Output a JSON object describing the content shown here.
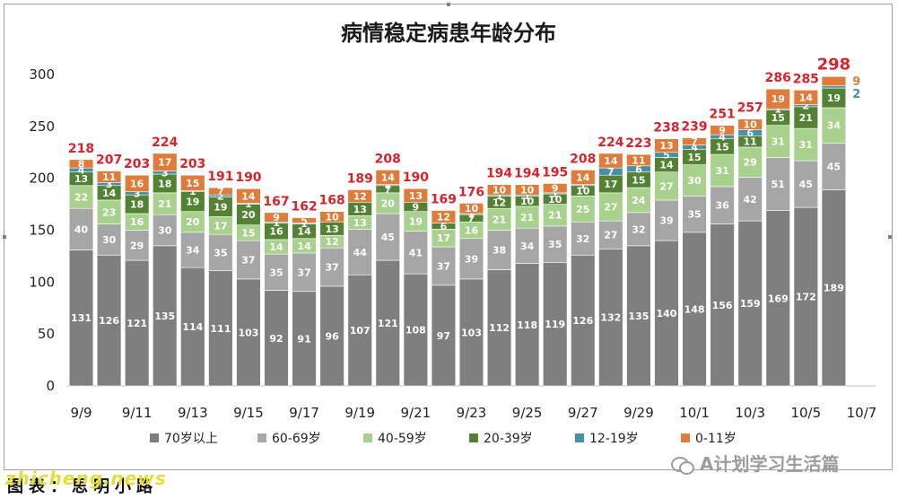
{
  "chart_data": {
    "type": "bar",
    "stacked": true,
    "title": "病情稳定病患年龄分布",
    "categories": [
      "9/9",
      "9/10",
      "9/11",
      "9/12",
      "9/13",
      "9/14",
      "9/15",
      "9/16",
      "9/17",
      "9/18",
      "9/19",
      "9/20",
      "9/21",
      "9/22",
      "9/23",
      "9/24",
      "9/25",
      "9/26",
      "9/27",
      "9/28",
      "9/29",
      "9/30",
      "10/1",
      "10/2",
      "10/3",
      "10/4",
      "10/5",
      "10/6",
      "10/7"
    ],
    "x_tick_labels": [
      "9/9",
      "9/11",
      "9/13",
      "9/15",
      "9/17",
      "9/19",
      "9/21",
      "9/23",
      "9/25",
      "9/27",
      "9/29",
      "10/1",
      "10/3",
      "10/5",
      "10/7"
    ],
    "ylim": [
      0,
      300
    ],
    "yticks": [
      0,
      50,
      100,
      150,
      200,
      250,
      300
    ],
    "grid": false,
    "legend_position": "bottom",
    "series": [
      {
        "name": "70岁以上",
        "color": "#7f7f7f",
        "values": [
          131,
          126,
          121,
          135,
          114,
          111,
          103,
          92,
          91,
          96,
          107,
          121,
          108,
          97,
          103,
          112,
          118,
          119,
          126,
          132,
          135,
          140,
          148,
          156,
          159,
          169,
          172,
          189,
          0
        ]
      },
      {
        "name": "60-69岁",
        "color": "#a6a6a6",
        "values": [
          40,
          30,
          29,
          30,
          34,
          35,
          37,
          35,
          37,
          37,
          44,
          45,
          41,
          37,
          39,
          38,
          34,
          35,
          32,
          27,
          32,
          39,
          35,
          36,
          42,
          51,
          45,
          45,
          0
        ]
      },
      {
        "name": "40-59岁",
        "color": "#a9d18e",
        "values": [
          22,
          23,
          16,
          21,
          20,
          17,
          15,
          14,
          14,
          12,
          13,
          20,
          19,
          17,
          16,
          21,
          21,
          21,
          25,
          27,
          24,
          27,
          30,
          31,
          29,
          31,
          31,
          34,
          0
        ]
      },
      {
        "name": "20-39岁",
        "color": "#548235",
        "values": [
          13,
          14,
          18,
          18,
          19,
          19,
          20,
          16,
          14,
          13,
          13,
          7,
          9,
          6,
          7,
          12,
          10,
          10,
          10,
          17,
          15,
          14,
          15,
          15,
          11,
          15,
          21,
          19,
          0
        ]
      },
      {
        "name": "12-19岁",
        "color": "#4a90a4",
        "values": [
          4,
          3,
          3,
          3,
          1,
          2,
          1,
          1,
          1,
          0,
          0,
          1,
          0,
          0,
          1,
          1,
          1,
          1,
          1,
          7,
          6,
          5,
          4,
          4,
          6,
          1,
          2,
          2,
          0
        ]
      },
      {
        "name": "0-11岁",
        "color": "#e07b39",
        "values": [
          8,
          11,
          16,
          17,
          15,
          7,
          14,
          9,
          5,
          10,
          12,
          14,
          13,
          12,
          10,
          10,
          10,
          9,
          14,
          14,
          11,
          13,
          7,
          9,
          10,
          19,
          14,
          9,
          0
        ]
      }
    ],
    "totals": [
      218,
      207,
      203,
      224,
      203,
      191,
      190,
      167,
      162,
      168,
      189,
      208,
      190,
      169,
      176,
      194,
      194,
      195,
      208,
      224,
      223,
      238,
      239,
      251,
      257,
      286,
      285,
      298,
      null
    ],
    "segment_labels": [
      [
        "131",
        "40",
        "22",
        "13",
        "4",
        "8"
      ],
      [
        "126",
        "30",
        "23",
        "14",
        "3",
        "11"
      ],
      [
        "121",
        "29",
        "16",
        "18",
        "3",
        "16"
      ],
      [
        "135",
        "30",
        "21",
        "18",
        "3",
        "17"
      ],
      [
        "114",
        "34",
        "20",
        "19",
        "1",
        "15"
      ],
      [
        "111",
        "35",
        "17",
        "19",
        "2",
        "7"
      ],
      [
        "103",
        "37",
        "15",
        "20",
        "1",
        "14"
      ],
      [
        "92",
        "35",
        "14",
        "16",
        "1",
        "9"
      ],
      [
        "91",
        "37",
        "14",
        "14",
        "1",
        "5"
      ],
      [
        "96",
        "37",
        "12",
        "13",
        "",
        "10"
      ],
      [
        "107",
        "44",
        "13",
        "13",
        "",
        "12"
      ],
      [
        "121",
        "45",
        "20",
        "7",
        "1",
        "14"
      ],
      [
        "108",
        "41",
        "19",
        "9",
        "",
        "13"
      ],
      [
        "97",
        "37",
        "17",
        "6",
        "",
        "12"
      ],
      [
        "103",
        "39",
        "16",
        "7",
        "1",
        "10"
      ],
      [
        "112",
        "38",
        "21",
        "12",
        "1",
        "10"
      ],
      [
        "118",
        "34",
        "21",
        "10",
        "1",
        "10"
      ],
      [
        "119",
        "35",
        "21",
        "10",
        "1",
        "9"
      ],
      [
        "126",
        "32",
        "25",
        "10",
        "1",
        "14"
      ],
      [
        "132",
        "27",
        "27",
        "17",
        "7",
        "14"
      ],
      [
        "135",
        "32",
        "24",
        "15",
        "6",
        "11"
      ],
      [
        "140",
        "39",
        "27",
        "14",
        "5",
        "13"
      ],
      [
        "148",
        "35",
        "30",
        "15",
        "4",
        "7"
      ],
      [
        "156",
        "36",
        "31",
        "15",
        "4",
        "9"
      ],
      [
        "159",
        "42",
        "29",
        "11",
        "6",
        "10"
      ],
      [
        "169",
        "51",
        "31",
        "15",
        "1",
        "19"
      ],
      [
        "172",
        "45",
        "31",
        "21",
        "2",
        "14"
      ],
      [
        "189",
        "45",
        "34",
        "19",
        "",
        ""
      ],
      [
        "",
        "",
        "",
        "",
        "",
        ""
      ]
    ],
    "side_labels": [
      {
        "text": "9",
        "color": "#e07b39"
      },
      {
        "text": "2",
        "color": "#4a90a4"
      }
    ]
  },
  "footer": {
    "caption": "图表：思明小路",
    "site_watermark": "zhicheng.news",
    "wechat_watermark": "A计划学习生活篇"
  }
}
